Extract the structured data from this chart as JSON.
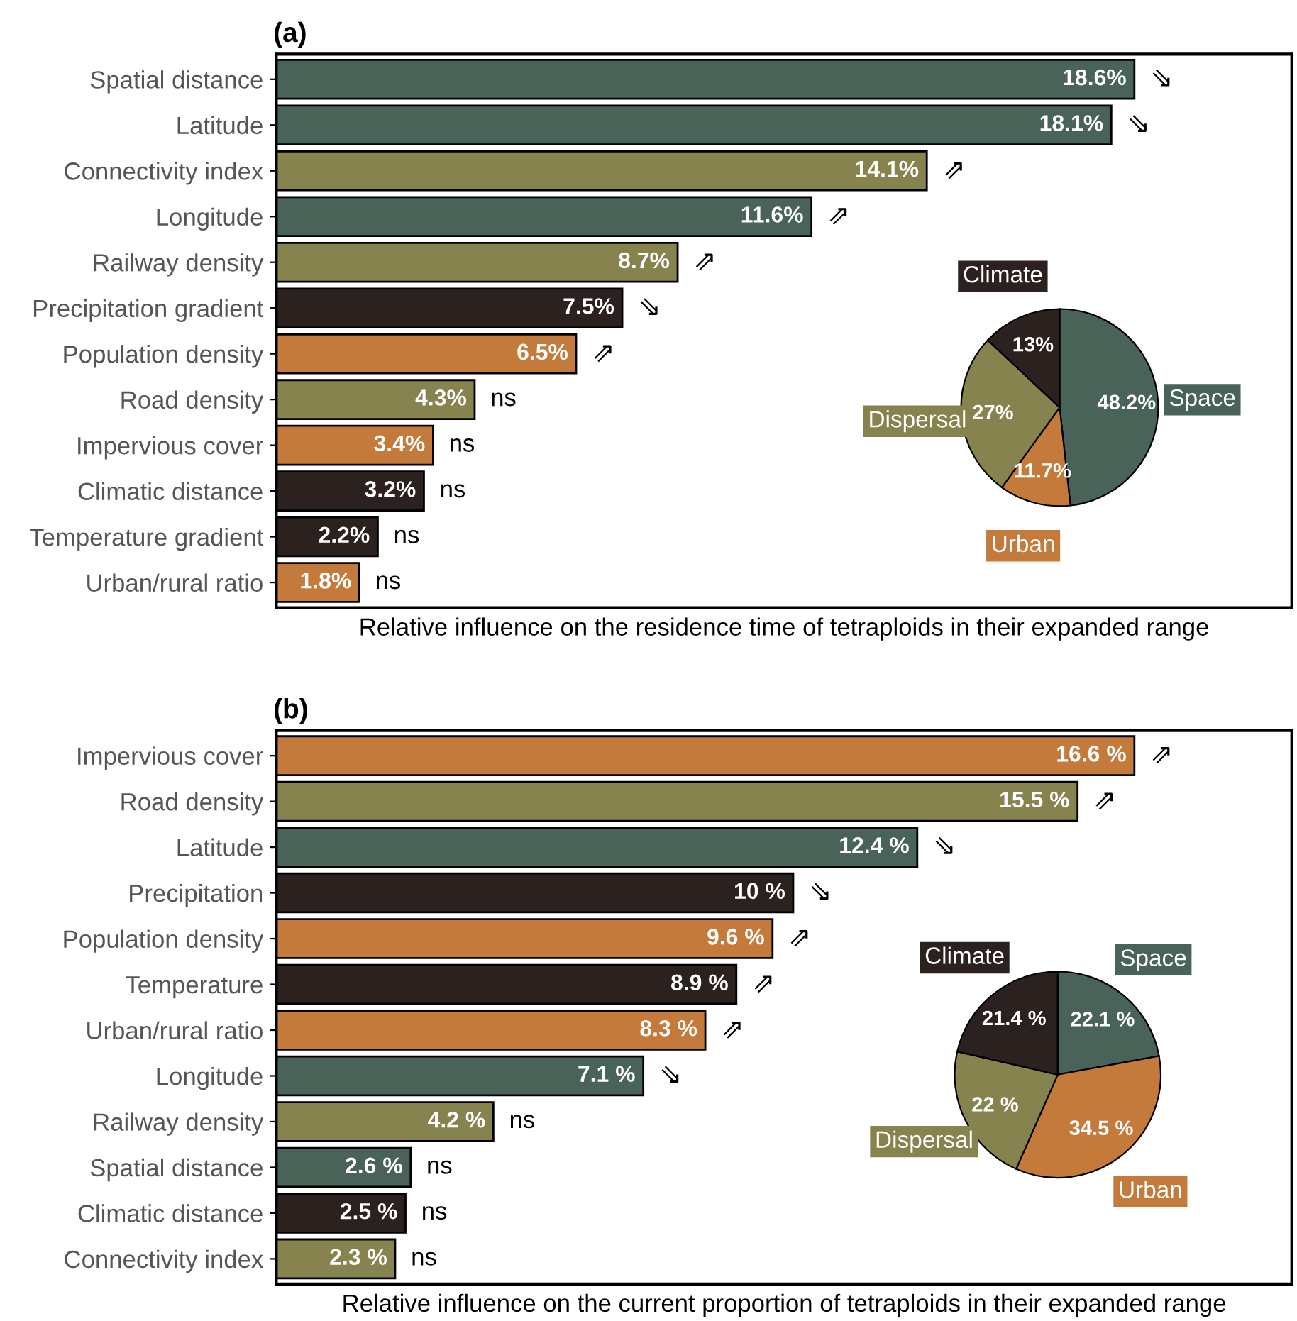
{
  "chart_data": [
    {
      "type": "bar",
      "orientation": "horizontal",
      "title": "(a)",
      "xlabel": "Relative influence on the residence time of tetraploids in their expanded range",
      "tick_labels": "y",
      "grid": false,
      "categories": [
        "Spatial distance",
        "Latitude",
        "Connectivity index",
        "Longitude",
        "Railway density",
        "Precipitation gradient",
        "Population density",
        "Road density",
        "Impervious cover",
        "Climatic distance",
        "Temperature gradient",
        "Urban/rural ratio"
      ],
      "values": [
        18.6,
        18.1,
        14.1,
        11.6,
        8.7,
        7.5,
        6.5,
        4.3,
        3.4,
        3.2,
        2.2,
        1.8
      ],
      "value_labels": [
        "18.6%",
        "18.1%",
        "14.1%",
        "11.6%",
        "8.7%",
        "7.5%",
        "6.5%",
        "4.3%",
        "3.4%",
        "3.2%",
        "2.2%",
        "1.8%"
      ],
      "colors": [
        "#4a6358",
        "#4a6358",
        "#87834f",
        "#4a6358",
        "#87834f",
        "#2b2220",
        "#c47a3a",
        "#87834f",
        "#c47a3a",
        "#2b2220",
        "#2b2220",
        "#c47a3a"
      ],
      "annotations": [
        {
          "text": "⇘",
          "x": 18.6,
          "y": "Spatial distance"
        },
        {
          "text": "⇘",
          "x": 18.1,
          "y": "Latitude"
        },
        {
          "text": "⇗",
          "x": 14.1,
          "y": "Connectivity index"
        },
        {
          "text": "⇗",
          "x": 11.6,
          "y": "Longitude"
        },
        {
          "text": "⇗",
          "x": 8.7,
          "y": "Railway density"
        },
        {
          "text": "⇘",
          "x": 7.5,
          "y": "Precipitation gradient"
        },
        {
          "text": "⇗",
          "x": 6.5,
          "y": "Population density"
        },
        {
          "text": "ns",
          "x": 4.3,
          "y": "Road density"
        },
        {
          "text": "ns",
          "x": 3.4,
          "y": "Impervious cover"
        },
        {
          "text": "ns",
          "x": 3.2,
          "y": "Climatic distance"
        },
        {
          "text": "ns",
          "x": 2.2,
          "y": "Temperature gradient"
        },
        {
          "text": "ns",
          "x": 1.8,
          "y": "Urban/rural ratio"
        }
      ]
    },
    {
      "type": "pie",
      "categories": [
        "Space",
        "Urban",
        "Dispersal",
        "Climate"
      ],
      "values": [
        48.2,
        11.7,
        27,
        13
      ],
      "value_labels": [
        "48.2%",
        "11.7%",
        "27%",
        "13%"
      ],
      "colors": [
        "#4a6358",
        "#c47a3a",
        "#87834f",
        "#2b2220"
      ]
    },
    {
      "type": "bar",
      "orientation": "horizontal",
      "title": "(b)",
      "xlabel": "Relative influence on the current proportion of tetraploids in their expanded range",
      "tick_labels": "y",
      "grid": false,
      "categories": [
        "Impervious cover",
        "Road density",
        "Latitude",
        "Precipitation",
        "Population density",
        "Temperature",
        "Urban/rural ratio",
        "Longitude",
        "Railway density",
        "Spatial distance",
        "Climatic distance",
        "Connectivity index"
      ],
      "values": [
        16.6,
        15.5,
        12.4,
        10,
        9.6,
        8.9,
        8.3,
        7.1,
        4.2,
        2.6,
        2.5,
        2.3
      ],
      "value_labels": [
        "16.6 %",
        "15.5 %",
        "12.4 %",
        "10 %",
        "9.6 %",
        "8.9 %",
        "8.3 %",
        "7.1 %",
        "4.2 %",
        "2.6 %",
        "2.5 %",
        "2.3 %"
      ],
      "colors": [
        "#c47a3a",
        "#87834f",
        "#4a6358",
        "#2b2220",
        "#c47a3a",
        "#2b2220",
        "#c47a3a",
        "#4a6358",
        "#87834f",
        "#4a6358",
        "#2b2220",
        "#87834f"
      ],
      "annotations": [
        {
          "text": "⇗",
          "x": 16.6,
          "y": "Impervious cover"
        },
        {
          "text": "⇗",
          "x": 15.5,
          "y": "Road density"
        },
        {
          "text": "⇘",
          "x": 12.4,
          "y": "Latitude"
        },
        {
          "text": "⇘",
          "x": 10,
          "y": "Precipitation"
        },
        {
          "text": "⇗",
          "x": 9.6,
          "y": "Population density"
        },
        {
          "text": "⇗",
          "x": 8.9,
          "y": "Temperature"
        },
        {
          "text": "⇗",
          "x": 8.3,
          "y": "Urban/rural ratio"
        },
        {
          "text": "⇘",
          "x": 7.1,
          "y": "Longitude"
        },
        {
          "text": "ns",
          "x": 4.2,
          "y": "Railway density"
        },
        {
          "text": "ns",
          "x": 2.6,
          "y": "Spatial distance"
        },
        {
          "text": "ns",
          "x": 2.5,
          "y": "Climatic distance"
        },
        {
          "text": "ns",
          "x": 2.3,
          "y": "Connectivity index"
        }
      ]
    },
    {
      "type": "pie",
      "categories": [
        "Space",
        "Urban",
        "Dispersal",
        "Climate"
      ],
      "values": [
        22.1,
        34.5,
        22,
        21.4
      ],
      "value_labels": [
        "22.1 %",
        "34.5 %",
        "22 %",
        "21.4 %"
      ],
      "colors": [
        "#4a6358",
        "#c47a3a",
        "#87834f",
        "#2b2220"
      ]
    }
  ]
}
